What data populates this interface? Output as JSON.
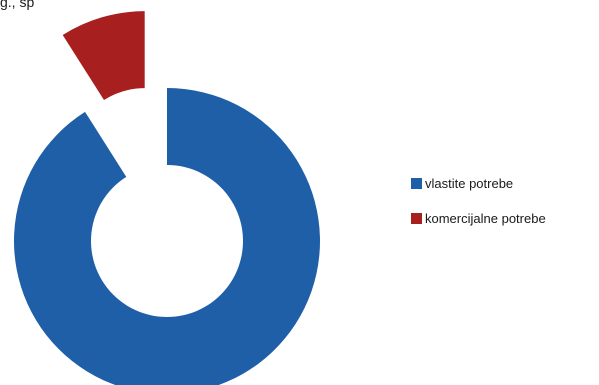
{
  "top_text": "g., sp",
  "chart_data": {
    "type": "pie",
    "variant": "exploded-donut",
    "title": "",
    "categories": [
      "vlastite potrebe",
      "komercijalne potrebe"
    ],
    "values": [
      91,
      9
    ],
    "colors": [
      "#1f5fa8",
      "#a81f1f"
    ],
    "legend": "right"
  }
}
